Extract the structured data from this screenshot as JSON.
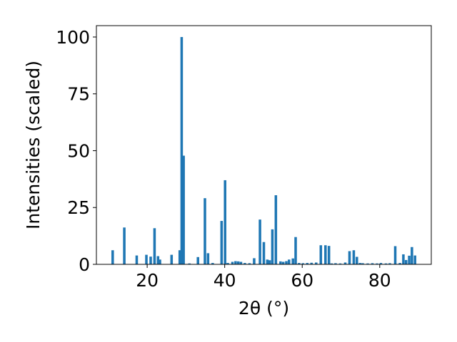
{
  "chart_data": {
    "type": "bar",
    "xlabel": "2θ (°)",
    "ylabel": "Intensities (scaled)",
    "xlim": [
      6.9,
      93.3
    ],
    "ylim": [
      0,
      105
    ],
    "xticks": [
      20,
      40,
      60,
      80
    ],
    "yticks": [
      0,
      25,
      50,
      75,
      100
    ],
    "grid": false,
    "bar_width": 0.65,
    "bar_color": "#1f77b4",
    "x": [
      11.1,
      14.1,
      17.3,
      19.8,
      20.9,
      21.9,
      22.8,
      23.3,
      26.3,
      28.4,
      28.9,
      29.4,
      30.9,
      33.1,
      34.9,
      35.7,
      36.9,
      39.2,
      40.1,
      40.8,
      42.0,
      42.8,
      43.5,
      44.2,
      45.2,
      46.4,
      47.6,
      49.1,
      50.1,
      51.0,
      51.6,
      52.3,
      53.2,
      54.4,
      55.1,
      55.9,
      56.6,
      57.6,
      58.3,
      59.2,
      60.2,
      61.3,
      62.4,
      63.6,
      64.8,
      66.0,
      66.9,
      67.6,
      68.6,
      69.8,
      71.1,
      72.2,
      73.3,
      74.1,
      74.9,
      75.6,
      76.9,
      78.1,
      79.3,
      80.3,
      81.6,
      82.6,
      84.0,
      85.2,
      86.1,
      86.8,
      87.6,
      88.3,
      89.1
    ],
    "values": [
      6.2,
      16.2,
      3.9,
      4.2,
      3.4,
      15.9,
      3.6,
      2.1,
      4.2,
      6.2,
      100,
      47.8,
      0.4,
      3.2,
      29.1,
      4.9,
      0.6,
      19.1,
      37.0,
      0.6,
      1.1,
      1.4,
      1.3,
      1.1,
      0.6,
      0.5,
      2.7,
      19.7,
      9.8,
      2.1,
      1.8,
      15.4,
      30.4,
      1.3,
      1.1,
      1.4,
      2.1,
      2.6,
      12.0,
      0.6,
      0.5,
      0.6,
      0.7,
      0.8,
      8.4,
      8.4,
      8.1,
      0.4,
      0.5,
      0.4,
      0.8,
      5.8,
      6.2,
      3.3,
      0.6,
      0.5,
      0.4,
      0.5,
      0.4,
      0.6,
      0.4,
      0.5,
      8.0,
      0.6,
      4.4,
      1.9,
      3.8,
      7.6,
      3.9
    ]
  }
}
